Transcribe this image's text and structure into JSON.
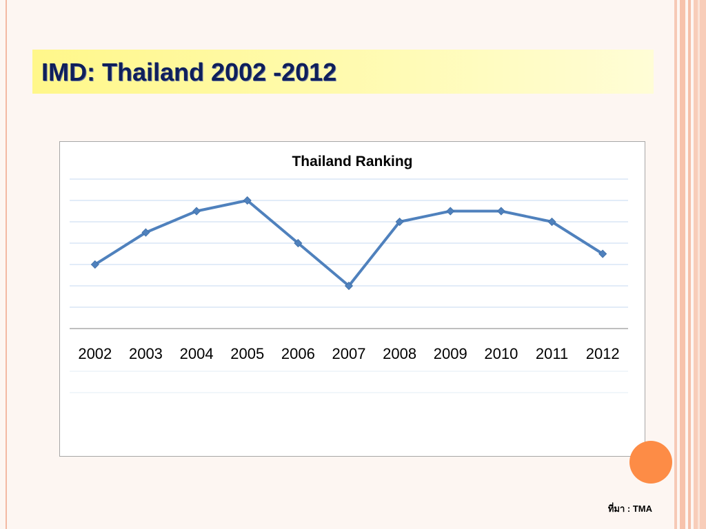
{
  "slide": {
    "title": "IMD: Thailand 2002 -2012",
    "source": "ที่มา : TMA"
  },
  "colors": {
    "title_text": "#0e1f5b",
    "title_band": "#fff9a8",
    "series_line": "#4f81bd",
    "gridline": "#c6d9f1",
    "accent_circle": "#fd8c46"
  },
  "chart_data": {
    "type": "line",
    "title": "Thailand Ranking",
    "xlabel": "",
    "ylabel": "",
    "categories": [
      "2002",
      "2003",
      "2004",
      "2005",
      "2006",
      "2007",
      "2008",
      "2009",
      "2010",
      "2011",
      "2012"
    ],
    "series": [
      {
        "values": [
          31,
          28,
          26,
          25,
          29,
          33,
          27,
          26,
          26,
          27,
          30
        ]
      }
    ],
    "y_axis": {
      "reversed": true,
      "visible_range": [
        23,
        37
      ],
      "tick_labels_shown": false
    },
    "grid": true,
    "marker": "diamond",
    "legend": "none"
  }
}
